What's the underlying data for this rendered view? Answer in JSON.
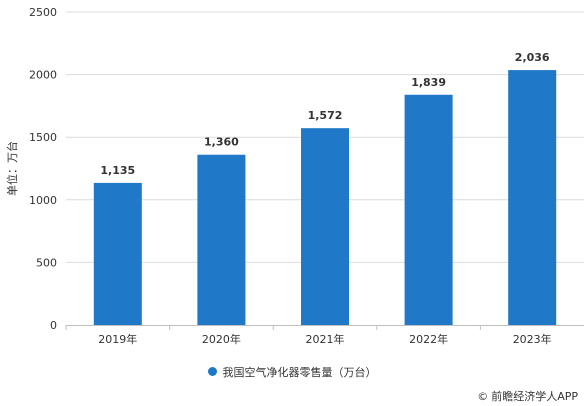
{
  "chart_data": {
    "type": "bar",
    "categories": [
      "2019年",
      "2020年",
      "2021年",
      "2022年",
      "2023年"
    ],
    "series": [
      {
        "name": "我国空气净化器零售量（万台）",
        "values": [
          1135,
          1360,
          1572,
          1839,
          2036
        ],
        "value_labels": [
          "1,135",
          "1,360",
          "1,572",
          "1,839",
          "2,036"
        ]
      }
    ],
    "ylabel": "单位：万台",
    "ylim": [
      0,
      2500
    ],
    "yticks": [
      0,
      500,
      1000,
      1500,
      2000,
      2500
    ],
    "grid": true,
    "legend_position": "bottom",
    "bar_color": "#1f78c8"
  },
  "legend": {
    "label": "我国空气净化器零售量（万台）",
    "color": "#1f78c8"
  },
  "source": {
    "icon": "copyright-icon",
    "text": "前瞻经济学人APP"
  }
}
